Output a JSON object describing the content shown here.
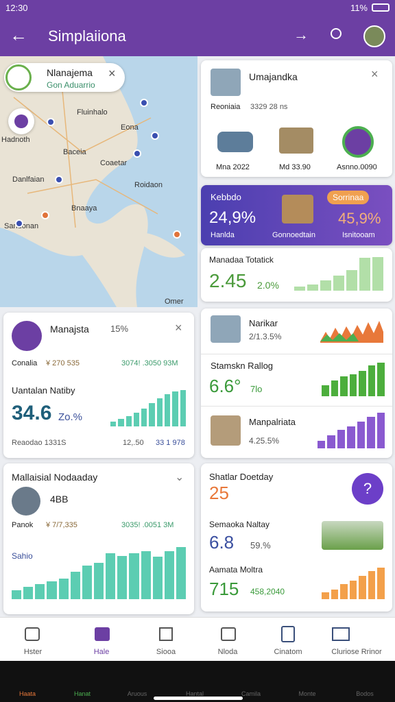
{
  "status": {
    "time": "12:30",
    "battery": "11%"
  },
  "appbar": {
    "title": "Simplaiiona"
  },
  "map": {
    "card_title": "Nlanajema",
    "card_subtitle": "Gon Aduarrio",
    "labels": [
      "Fluinhalo",
      "Hadnoth",
      "Eona",
      "Baceia",
      "Coaetar",
      "Danlfaian",
      "Roidaon",
      "Bnaaya",
      "Sandonan",
      "Omer"
    ]
  },
  "place_card": {
    "title": "Umajandka",
    "meta": "Reoniaia",
    "meta_value": "3329 28 ns",
    "items": [
      "Mna 2022",
      "Md 33.90",
      "Asnno.0090"
    ]
  },
  "promo_card": {
    "title": "Kebbdo",
    "badge": "Sorrinaa",
    "left_value": "24,9%",
    "right_value": "45,9%",
    "labels": [
      "Hanlda",
      "Gonnoedtain",
      "Isnitooam"
    ]
  },
  "stat_card": {
    "title": "Manadaa Totatick",
    "value": "2.45",
    "change": "2.0%",
    "bars": [
      12,
      18,
      28,
      42,
      58,
      92,
      95
    ]
  },
  "left_card": {
    "title": "Manajsta",
    "change": "15%",
    "row_label": "Conalia",
    "row_value": "¥ 270 535",
    "row_right": "3074! .3050 93M",
    "subtitle": "Uantalan Natiby",
    "value": "34.6",
    "value_change": "Zo.%",
    "bars": [
      12,
      18,
      24,
      32,
      42,
      55,
      66,
      76,
      82,
      86
    ],
    "footer": "Reaodao 1331S",
    "footer_a": "12,.50",
    "footer_b": "33 1 978"
  },
  "list_card": {
    "items": [
      {
        "title": "Narikar",
        "value": "2/1.3.5%"
      },
      {
        "title": "Stamskn Rallog",
        "value": "6.6°",
        "change": "7lo",
        "bars": [
          30,
          45,
          55,
          62,
          72,
          86,
          95
        ]
      },
      {
        "title": "Manpalriata",
        "value": "4.25.5%",
        "bars": [
          20,
          35,
          50,
          60,
          72,
          86,
          96
        ]
      }
    ]
  },
  "bottom_left_card": {
    "title": "Mallaisial Nodaaday",
    "value": "4BB",
    "row_label": "Panok",
    "row_value": "¥ 7/7,335",
    "row_right": "3035! .0051 3M",
    "subtitle": "Sahio",
    "bars": [
      15,
      20,
      25,
      30,
      34,
      45,
      56,
      60,
      76,
      72,
      76,
      80,
      70,
      80,
      86
    ]
  },
  "bottom_right_card": {
    "title": "Shatlar Doetday",
    "value": "25",
    "item1_title": "Semaoka Naltay",
    "item1_value": "6.8",
    "item1_change": "59.%",
    "item2_title": "Aamata Moltra",
    "item2_value": "715",
    "item2_change": "458,2040",
    "bars": [
      20,
      30,
      45,
      56,
      70,
      86,
      95
    ]
  },
  "tabs": [
    "Hster",
    "Hale",
    "Siooa",
    "Nloda",
    "Cinatom",
    "Cluriose Rrinor"
  ],
  "system_nav": [
    "Haata",
    "Hanat",
    "Aruous",
    "Hantal",
    "Camila",
    "Monte",
    "Bodos"
  ]
}
